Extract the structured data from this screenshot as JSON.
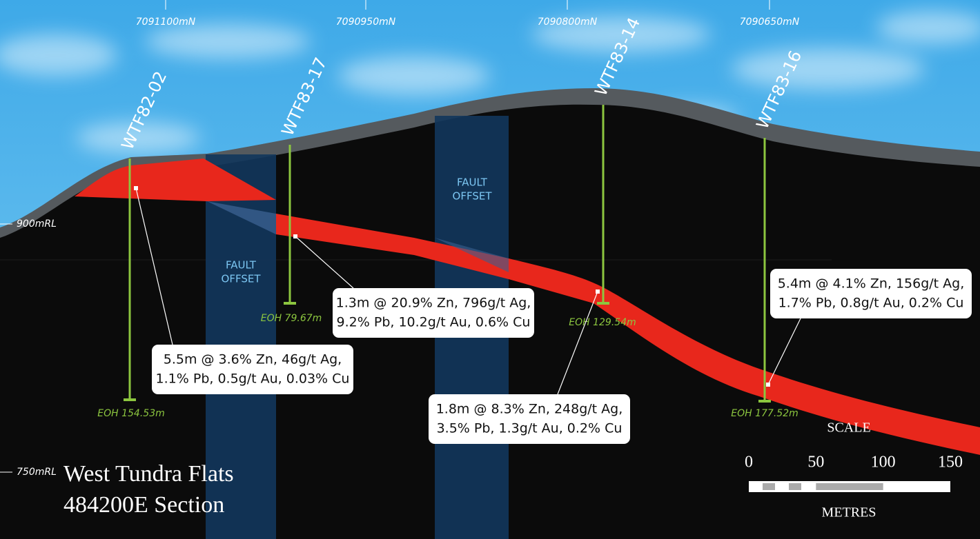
{
  "header": {
    "title": "West Tundra Flats",
    "subtitle": "484200E Section"
  },
  "northings": [
    "7091100mN",
    "7090950mN",
    "7090800mN",
    "7090650mN"
  ],
  "levels": [
    "900mRL",
    "750mRL"
  ],
  "faults": [
    {
      "lines": [
        "FAULT",
        "OFFSET"
      ]
    },
    {
      "lines": [
        "FAULT",
        "OFFSET"
      ]
    }
  ],
  "drillholes": [
    {
      "name": "WTF82-02",
      "eoh": "EOH 154.53m"
    },
    {
      "name": "WTF83-17",
      "eoh": "EOH 79.67m"
    },
    {
      "name": "WTF83-14",
      "eoh": "EOH 129.54m"
    },
    {
      "name": "WTF83-16",
      "eoh": "EOH 177.52m"
    }
  ],
  "intercepts": [
    {
      "lines": [
        "5.5m @ 3.6% Zn, 46g/t Ag,",
        "1.1% Pb, 0.5g/t Au, 0.03% Cu"
      ]
    },
    {
      "lines": [
        "1.3m @ 20.9% Zn, 796g/t Ag,",
        "9.2% Pb, 10.2g/t Au, 0.6% Cu"
      ]
    },
    {
      "lines": [
        "1.8m @ 8.3% Zn, 248g/t Ag,",
        "3.5% Pb, 1.3g/t Au, 0.2% Cu"
      ]
    },
    {
      "lines": [
        "5.4m @ 4.1% Zn, 156g/t Ag,",
        "1.7% Pb, 0.8g/t Au, 0.2% Cu"
      ]
    }
  ],
  "scale": {
    "title": "SCALE",
    "ticks": [
      0,
      50,
      100,
      150
    ],
    "unit": "METRES"
  }
}
